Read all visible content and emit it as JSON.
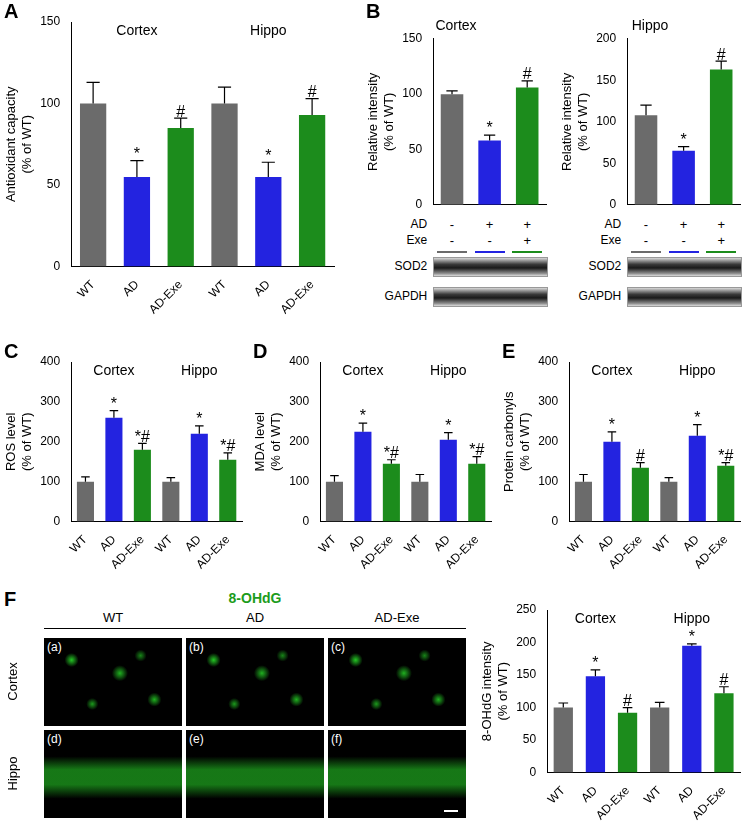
{
  "chart_data": [
    {
      "panel": "A",
      "type": "bar",
      "y_label": [
        "Antioxidant capacity",
        "(% of WT)"
      ],
      "groups": [
        "Cortex",
        "Hippo"
      ],
      "categories": [
        "WT",
        "AD",
        "AD-Exe",
        "WT",
        "AD",
        "AD-Exe"
      ],
      "values": [
        100,
        55,
        85,
        100,
        55,
        93
      ],
      "errors": [
        13,
        10,
        6,
        10,
        9,
        10
      ],
      "annotations": [
        null,
        "*",
        "#",
        null,
        "*",
        "#"
      ],
      "colors": [
        "#6b6b6b",
        "#2323e0",
        "#1c8c1c",
        "#6b6b6b",
        "#2323e0",
        "#1c8c1c"
      ],
      "ylim": [
        0,
        150
      ],
      "yticks": [
        0,
        50,
        100,
        150
      ],
      "grid": false
    },
    {
      "panel": "B",
      "type": "bar",
      "title": "Cortex",
      "y_label": [
        "Relative intensity",
        "(% of WT)"
      ],
      "categories": [
        null,
        null,
        null
      ],
      "tick_labels": "y",
      "values": [
        100,
        58,
        106
      ],
      "errors": [
        3,
        5,
        6
      ],
      "annotations": [
        null,
        "*",
        "#"
      ],
      "colors": [
        "#6b6b6b",
        "#2323e0",
        "#1c8c1c"
      ],
      "ylim": [
        0,
        150
      ],
      "yticks": [
        0,
        50,
        100,
        150
      ],
      "grid": false,
      "blot": {
        "rows": [
          {
            "label": "AD",
            "marks": [
              "-",
              "+",
              "+"
            ]
          },
          {
            "label": "Exe",
            "marks": [
              "-",
              "-",
              "+"
            ]
          }
        ],
        "bands": [
          "SOD2",
          "GAPDH"
        ]
      }
    },
    {
      "type": "bar",
      "title": "Hippo",
      "y_label": [
        "Relative intensity",
        "(% of WT)"
      ],
      "categories": [
        null,
        null,
        null
      ],
      "tick_labels": "y",
      "values": [
        108,
        65,
        163
      ],
      "errors": [
        12,
        5,
        10
      ],
      "annotations": [
        null,
        "*",
        "#"
      ],
      "colors": [
        "#6b6b6b",
        "#2323e0",
        "#1c8c1c"
      ],
      "ylim": [
        0,
        200
      ],
      "yticks": [
        0,
        50,
        100,
        150,
        200
      ],
      "grid": false,
      "blot": {
        "rows": [
          {
            "label": "AD",
            "marks": [
              "-",
              "+",
              "+"
            ]
          },
          {
            "label": "Exe",
            "marks": [
              "-",
              "-",
              "+"
            ]
          }
        ],
        "bands": [
          "SOD2",
          "GAPDH"
        ]
      }
    },
    {
      "panel": "C",
      "type": "bar",
      "y_label": [
        "ROS level",
        "(% of WT)"
      ],
      "groups": [
        "Cortex",
        "Hippo"
      ],
      "categories": [
        "WT",
        "AD",
        "AD-Exe",
        "WT",
        "AD",
        "AD-Exe"
      ],
      "values": [
        100,
        260,
        180,
        100,
        220,
        155
      ],
      "errors": [
        12,
        18,
        16,
        10,
        20,
        17
      ],
      "annotations": [
        null,
        "*",
        "*#",
        null,
        "*",
        "*#"
      ],
      "colors": [
        "#6b6b6b",
        "#2323e0",
        "#1c8c1c",
        "#6b6b6b",
        "#2323e0",
        "#1c8c1c"
      ],
      "ylim": [
        0,
        400
      ],
      "yticks": [
        0,
        100,
        200,
        300,
        400
      ],
      "grid": false
    },
    {
      "panel": "D",
      "type": "bar",
      "y_label": [
        "MDA level",
        "(% of WT)"
      ],
      "groups": [
        "Cortex",
        "Hippo"
      ],
      "categories": [
        "WT",
        "AD",
        "AD-Exe",
        "WT",
        "AD",
        "AD-Exe"
      ],
      "values": [
        100,
        225,
        145,
        100,
        205,
        145
      ],
      "errors": [
        15,
        22,
        10,
        18,
        18,
        18
      ],
      "annotations": [
        null,
        "*",
        "*#",
        null,
        "*",
        "*#"
      ],
      "colors": [
        "#6b6b6b",
        "#2323e0",
        "#1c8c1c",
        "#6b6b6b",
        "#2323e0",
        "#1c8c1c"
      ],
      "ylim": [
        0,
        400
      ],
      "yticks": [
        0,
        100,
        200,
        300,
        400
      ],
      "grid": false
    },
    {
      "panel": "E",
      "type": "bar",
      "y_label": [
        "Protein carbonyls",
        "(% of WT)"
      ],
      "groups": [
        "Cortex",
        "Hippo"
      ],
      "categories": [
        "WT",
        "AD",
        "AD-Exe",
        "WT",
        "AD",
        "AD-Exe"
      ],
      "values": [
        100,
        200,
        135,
        100,
        215,
        140
      ],
      "errors": [
        18,
        25,
        13,
        10,
        28,
        8
      ],
      "annotations": [
        null,
        "*",
        "#",
        null,
        "*",
        "*#"
      ],
      "colors": [
        "#6b6b6b",
        "#2323e0",
        "#1c8c1c",
        "#6b6b6b",
        "#2323e0",
        "#1c8c1c"
      ],
      "ylim": [
        0,
        400
      ],
      "yticks": [
        0,
        100,
        200,
        300,
        400
      ],
      "grid": false
    },
    {
      "panel": "F",
      "type": "bar",
      "y_label": [
        "8-OHdG intensity",
        "(% of WT)"
      ],
      "groups": [
        "Cortex",
        "Hippo"
      ],
      "categories": [
        "WT",
        "AD",
        "AD-Exe",
        "WT",
        "AD",
        "AD-Exe"
      ],
      "values": [
        100,
        148,
        92,
        100,
        195,
        122
      ],
      "errors": [
        7,
        10,
        8,
        8,
        3,
        10
      ],
      "annotations": [
        null,
        "*",
        "#",
        null,
        "*",
        "#"
      ],
      "colors": [
        "#6b6b6b",
        "#2323e0",
        "#1c8c1c",
        "#6b6b6b",
        "#2323e0",
        "#1c8c1c"
      ],
      "ylim": [
        0,
        250
      ],
      "yticks": [
        0,
        50,
        100,
        150,
        200,
        250
      ],
      "grid": false,
      "images": {
        "title": "8-OHdG",
        "columns": [
          "WT",
          "AD",
          "AD-Exe"
        ],
        "rows": [
          "Cortex",
          "Hippo"
        ],
        "labels": [
          [
            "(a)",
            "(b)",
            "(c)"
          ],
          [
            "(d)",
            "(e)",
            "(f)"
          ]
        ]
      }
    }
  ]
}
